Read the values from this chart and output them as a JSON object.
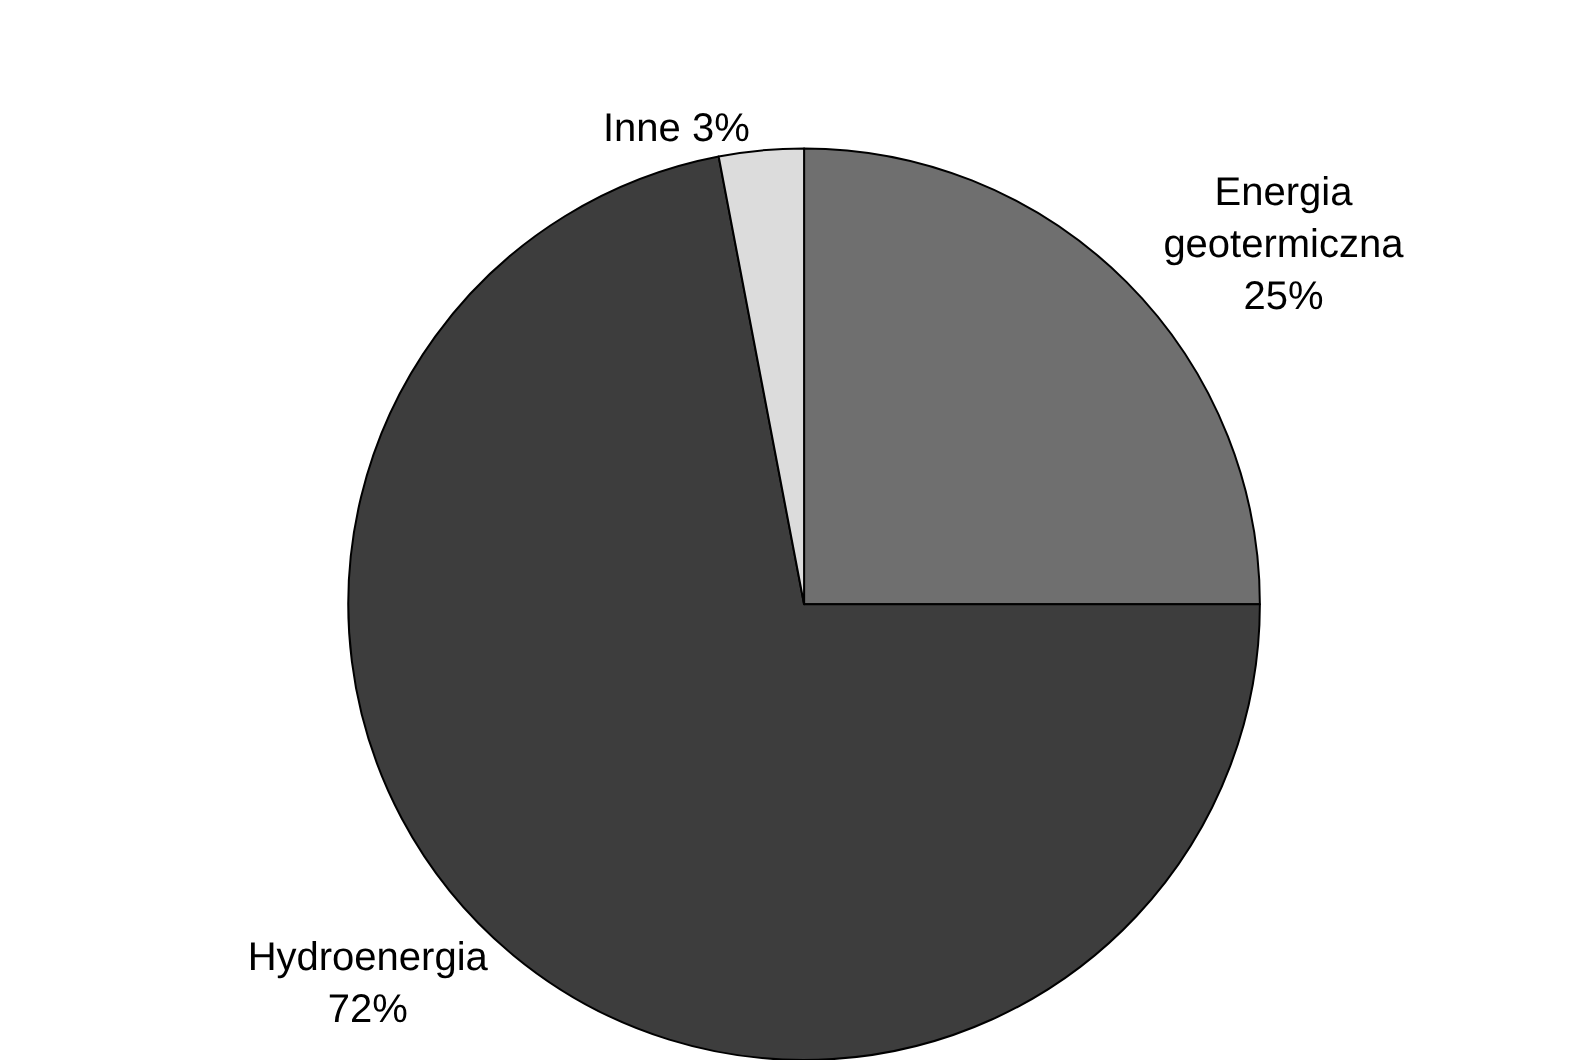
{
  "chart_data": {
    "type": "pie",
    "categories": [
      "Energia geotermiczna",
      "Hydroenergia",
      "Inne"
    ],
    "values": [
      25,
      72,
      3
    ],
    "value_labels": [
      "25%",
      "72%",
      "3%"
    ],
    "colors": [
      "#6f6f6f",
      "#3d3d3d",
      "#dcdcdc"
    ],
    "legend": false
  }
}
